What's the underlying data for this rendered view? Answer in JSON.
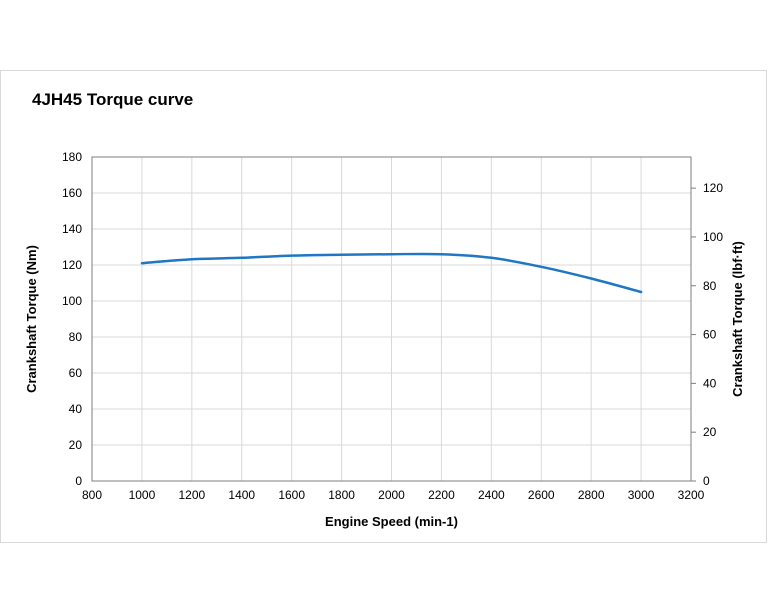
{
  "chart_data": {
    "type": "line",
    "title": "4JH45 Torque curve",
    "xlabel": "Engine Speed (min-1)",
    "ylabel": "Crankshaft Torque (Nm)",
    "y2label": "Crankshaft Torque (lbf·ft)",
    "xlim": [
      800,
      3200
    ],
    "ylim": [
      0,
      180
    ],
    "y2lim": [
      0,
      132.76
    ],
    "x_ticks": [
      800,
      1000,
      1200,
      1400,
      1600,
      1800,
      2000,
      2200,
      2400,
      2600,
      2800,
      3000,
      3200
    ],
    "y_ticks": [
      0,
      20,
      40,
      60,
      80,
      100,
      120,
      140,
      160,
      180
    ],
    "y2_ticks": [
      0,
      20,
      40,
      60,
      80,
      100,
      120
    ],
    "grid": true,
    "line_color": "#1f77c4",
    "series": [
      {
        "x": [
          1000,
          1200,
          1400,
          1600,
          1800,
          2000,
          2200,
          2400,
          2600,
          2800,
          3000
        ],
        "values": [
          121,
          123.2,
          124,
          125.2,
          125.7,
          126,
          126,
          124,
          119,
          112.5,
          105
        ]
      }
    ]
  }
}
